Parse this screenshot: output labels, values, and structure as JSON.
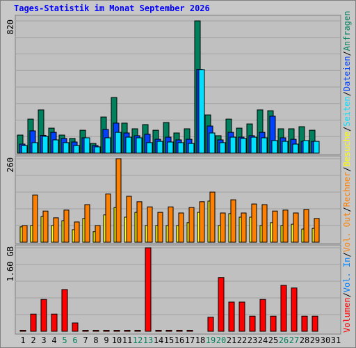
{
  "title": "Tages-Statistik im Monat September 2026",
  "legend_separator": "/",
  "chart_data": [
    {
      "type": "bar",
      "ylim": [
        0,
        820
      ],
      "yticks": [
        820
      ],
      "series": [
        {
          "name": "Anfragen",
          "color": "#00805c",
          "values": [
            112,
            211,
            268,
            155,
            112,
            91,
            142,
            60,
            224,
            345,
            186,
            151,
            177,
            142,
            190,
            125,
            151,
            820,
            237,
            108,
            211,
            155,
            181,
            268,
            263,
            151,
            151,
            164,
            142,
            0,
            0
          ]
        },
        {
          "name": "Dateien",
          "color": "#0040ff",
          "values": [
            56,
            138,
            110,
            129,
            91,
            69,
            95,
            47,
            147,
            186,
            125,
            108,
            117,
            86,
            99,
            82,
            86,
            520,
            168,
            82,
            129,
            99,
            108,
            129,
            229,
            95,
            86,
            73,
            73,
            0,
            0
          ]
        },
        {
          "name": "Seiten",
          "color": "#00e0ff",
          "values": [
            47,
            65,
            104,
            82,
            65,
            47,
            95,
            39,
            95,
            129,
            99,
            95,
            65,
            73,
            69,
            65,
            60,
            518,
            125,
            65,
            99,
            91,
            99,
            95,
            78,
            73,
            56,
            78,
            73,
            0,
            0
          ]
        }
      ]
    },
    {
      "type": "bar",
      "ylim": [
        0,
        260
      ],
      "yticks": [
        260
      ],
      "series": [
        {
          "name": "Besuche",
          "color": "#ffff00",
          "values": [
            48,
            52,
            80,
            52,
            67,
            39,
            74,
            33,
            85,
            108,
            78,
            93,
            52,
            52,
            52,
            52,
            61,
            93,
            128,
            52,
            89,
            78,
            78,
            52,
            61,
            52,
            56,
            41,
            43,
            0,
            0
          ]
        },
        {
          "name": "Rechner",
          "color": "#ff8000",
          "values": [
            52,
            147,
            97,
            76,
            100,
            63,
            117,
            52,
            150,
            260,
            143,
            126,
            110,
            93,
            110,
            91,
            108,
            126,
            156,
            91,
            132,
            91,
            119,
            117,
            97,
            100,
            91,
            102,
            74,
            0,
            0
          ]
        }
      ]
    },
    {
      "type": "bar",
      "ylim": [
        0,
        1.6
      ],
      "yticks": [
        {
          "value": 1.6,
          "label": "1.60 GB"
        }
      ],
      "categories": [
        "1",
        "2",
        "3",
        "4",
        "5",
        "6",
        "7",
        "8",
        "9",
        "10",
        "11",
        "12",
        "13",
        "14",
        "15",
        "16",
        "17",
        "18",
        "19",
        "20",
        "21",
        "22",
        "23",
        "24",
        "25",
        "26",
        "27",
        "28",
        "29",
        "30",
        "31"
      ],
      "category_colors": [
        "#000000",
        "#000000",
        "#000000",
        "#000000",
        "#00805c",
        "#00805c",
        "#000000",
        "#000000",
        "#000000",
        "#000000",
        "#000000",
        "#00805c",
        "#00805c",
        "#000000",
        "#000000",
        "#000000",
        "#000000",
        "#000000",
        "#00805c",
        "#00805c",
        "#000000",
        "#000000",
        "#000000",
        "#000000",
        "#000000",
        "#00805c",
        "#00805c",
        "#000000",
        "#000000",
        "#000000",
        "#000000"
      ],
      "series": [
        {
          "name": "Vol. Out",
          "color": "#ff8000",
          "values": [
            0,
            0,
            0,
            0,
            0,
            0,
            0,
            0,
            0,
            0,
            0,
            0,
            0,
            0,
            0,
            0,
            0,
            0,
            0,
            0,
            0,
            0,
            0,
            0,
            0,
            0,
            0,
            0,
            0,
            0,
            0
          ]
        },
        {
          "name": "Vol. In",
          "color": "#0080ff",
          "values": [
            0,
            0,
            0,
            0,
            0,
            0,
            0,
            0,
            0,
            0,
            0,
            0,
            0,
            0,
            0,
            0,
            0,
            0,
            0,
            0,
            0,
            0,
            0,
            0,
            0,
            0,
            0,
            0,
            0,
            0,
            0
          ]
        },
        {
          "name": "Volumen",
          "color": "#ff0000",
          "values": [
            0.02,
            0.33,
            0.61,
            0.33,
            0.8,
            0.16,
            0.02,
            0.02,
            0.02,
            0.02,
            0.02,
            0.02,
            1.6,
            0.02,
            0.02,
            0.02,
            0.02,
            0,
            0.27,
            1.03,
            0.56,
            0.56,
            0.29,
            0.61,
            0.29,
            0.88,
            0.83,
            0.29,
            0.29,
            0,
            0
          ]
        }
      ]
    }
  ]
}
